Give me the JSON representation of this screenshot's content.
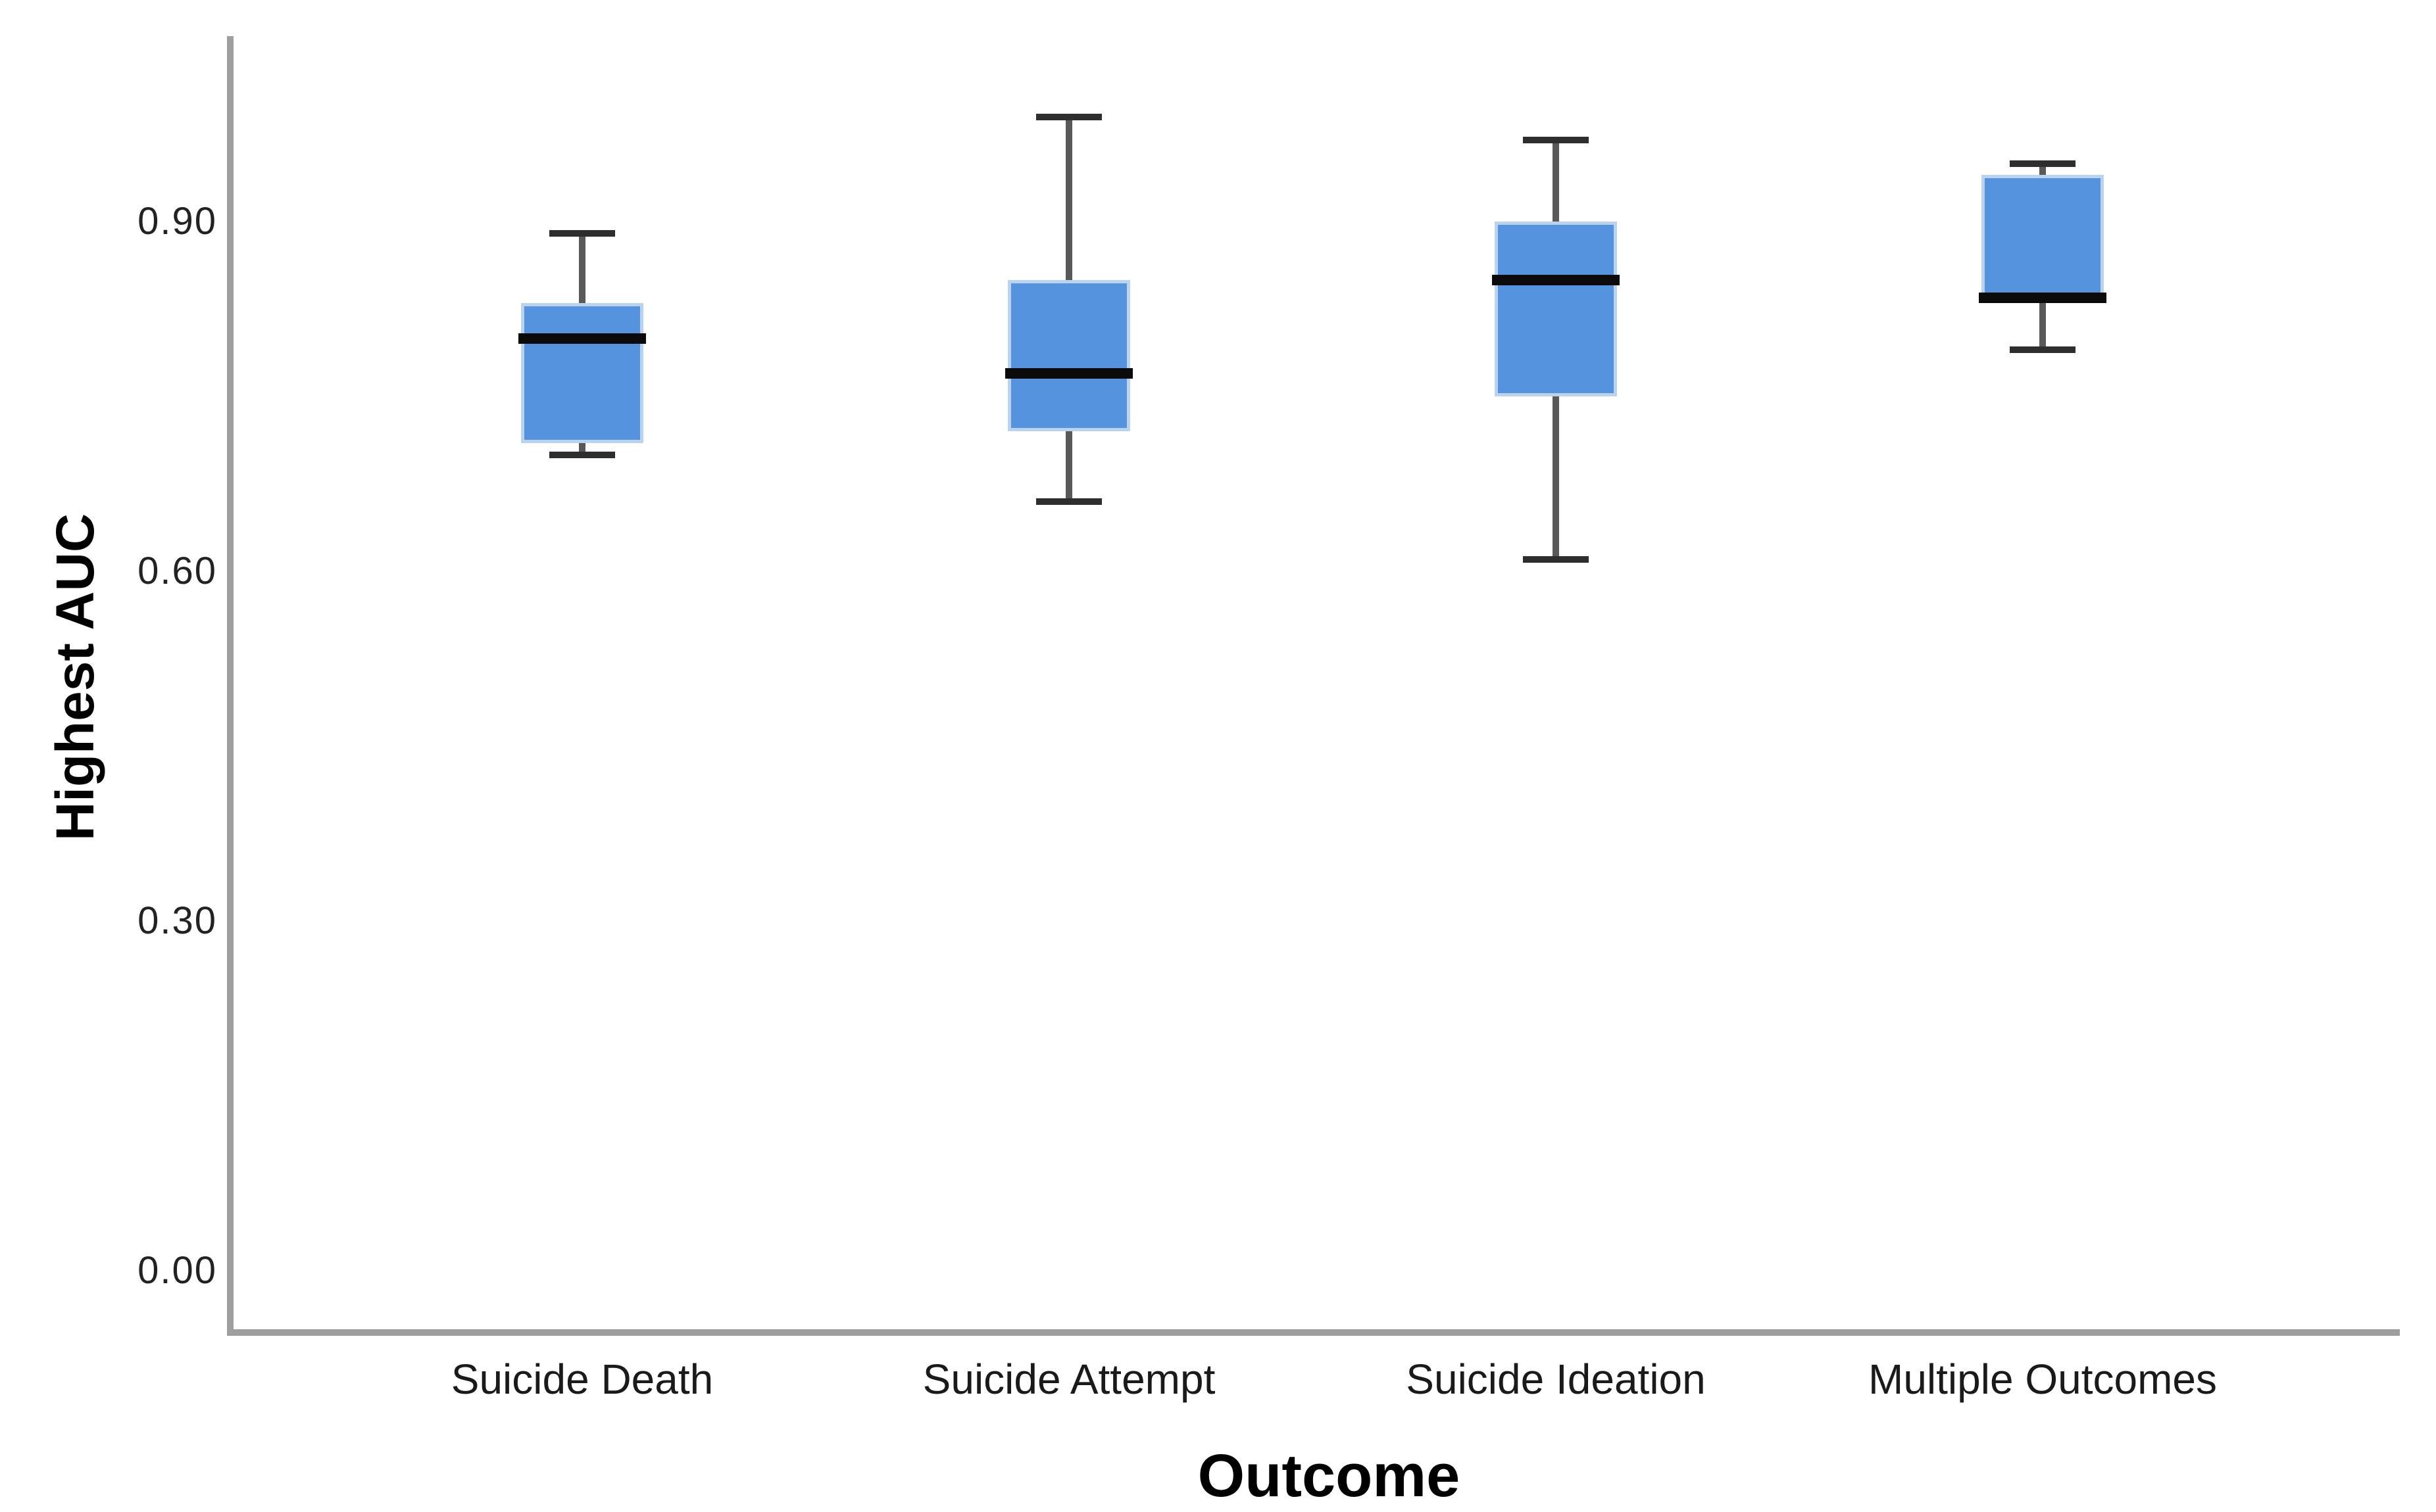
{
  "chart_data": {
    "type": "boxplot",
    "title": "",
    "xlabel": "Outcome",
    "ylabel": "Highest AUC",
    "categories": [
      "Suicide Death",
      "Suicide Attempt",
      "Suicide Ideation",
      "Multiple Outcomes"
    ],
    "yticks": [
      {
        "label": "0.00",
        "value": 0.0
      },
      {
        "label": "0.30",
        "value": 0.3
      },
      {
        "label": "0.60",
        "value": 0.6
      },
      {
        "label": "0.90",
        "value": 0.9
      }
    ],
    "ylim": [
      -0.053,
      1.059
    ],
    "grid": false,
    "legend_position": "none",
    "series": [
      {
        "category": "Suicide Death",
        "whisker_low": 0.7,
        "q1": 0.71,
        "median": 0.8,
        "q3": 0.83,
        "whisker_high": 0.89
      },
      {
        "category": "Suicide Attempt",
        "whisker_low": 0.66,
        "q1": 0.72,
        "median": 0.77,
        "q3": 0.85,
        "whisker_high": 0.99
      },
      {
        "category": "Suicide Ideation",
        "whisker_low": 0.61,
        "q1": 0.75,
        "median": 0.85,
        "q3": 0.9,
        "whisker_high": 0.97
      },
      {
        "category": "Multiple Outcomes",
        "whisker_low": 0.79,
        "q1": 0.83,
        "median": 0.835,
        "q3": 0.94,
        "whisker_high": 0.95
      }
    ],
    "colors": {
      "box_fill": "#5593de",
      "box_border": "#bcd3ef",
      "median": "#0a0a0a",
      "whisker_stem": "#595959",
      "whisker_cap": "#2e2e2e",
      "axis_line": "#9e9e9e",
      "tick_text": "#222222",
      "title_text": "#000000",
      "background": "#ffffff"
    }
  }
}
